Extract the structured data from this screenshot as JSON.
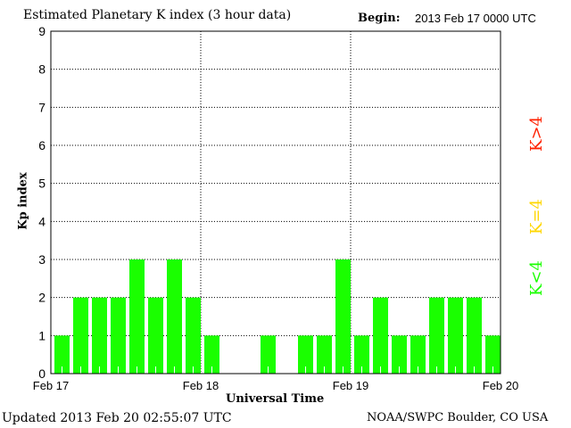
{
  "chart_data": {
    "type": "bar",
    "title": "Estimated Planetary K index (3 hour data)",
    "begin_label": "Begin:",
    "begin_value": "2013 Feb 17 0000 UTC",
    "xlabel": "Universal Time",
    "ylabel": "Kp index",
    "ylim": [
      0,
      9
    ],
    "yticks": [
      "0",
      "1",
      "2",
      "3",
      "4",
      "5",
      "6",
      "7",
      "8",
      "9"
    ],
    "xticks": [
      "Feb 17",
      "Feb 18",
      "Feb 19",
      "Feb 20"
    ],
    "values": [
      1,
      2,
      2,
      2,
      3,
      2,
      3,
      2,
      1,
      0,
      0,
      1,
      0,
      1,
      1,
      3,
      1,
      2,
      1,
      1,
      2,
      2,
      2,
      1
    ],
    "bar_color": "#1aff00",
    "legend": [
      {
        "label": "K<4",
        "color": "#1aff00"
      },
      {
        "label": "K=4",
        "color": "#ffd700"
      },
      {
        "label": "K>4",
        "color": "#ff2000"
      }
    ]
  },
  "footer": {
    "updated": "Updated 2013 Feb 20 02:55:07 UTC",
    "source": "NOAA/SWPC Boulder, CO USA"
  }
}
